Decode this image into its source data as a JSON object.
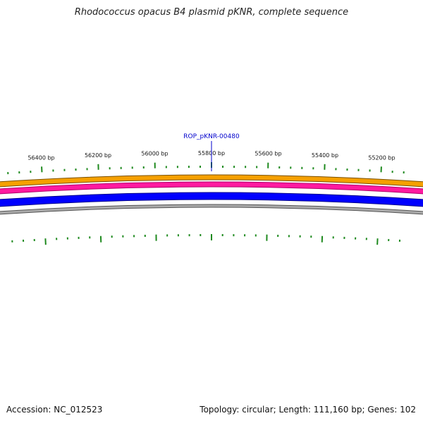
{
  "title": "Rhodococcus opacus B4 plasmid pKNR, complete sequence",
  "footer": {
    "accession": "Accession: NC_012523",
    "summary": "Topology: circular; Length: 111,160 bp; Genes: 102"
  },
  "map": {
    "visible_range_bp": [
      55100,
      56550
    ],
    "scale_direction": "decreasing-left-to-right",
    "tick_labels": [
      "56400 bp",
      "56200 bp",
      "56000 bp",
      "55800 bp",
      "55600 bp",
      "55400 bp",
      "55200 bp"
    ],
    "tick_positions_bp": [
      56400,
      56200,
      56000,
      55800,
      55600,
      55400,
      55200
    ],
    "minor_tick_interval_bp": 40,
    "tracks": [
      {
        "name": "orange",
        "color": "#f5a000",
        "stroke": "#7a5000"
      },
      {
        "name": "magenta",
        "color": "#ff1aa0",
        "stroke": "#b0006a"
      },
      {
        "name": "blue",
        "color": "#0000ff",
        "stroke": "#00008a"
      },
      {
        "name": "gray",
        "color": "#aaaaaa",
        "stroke": "#555555"
      }
    ],
    "tick_color": "#1f8a1f",
    "annotations": [
      {
        "label": "ROP_pKNR-00480",
        "position_bp": 55800,
        "color": "#0000cc"
      }
    ]
  }
}
